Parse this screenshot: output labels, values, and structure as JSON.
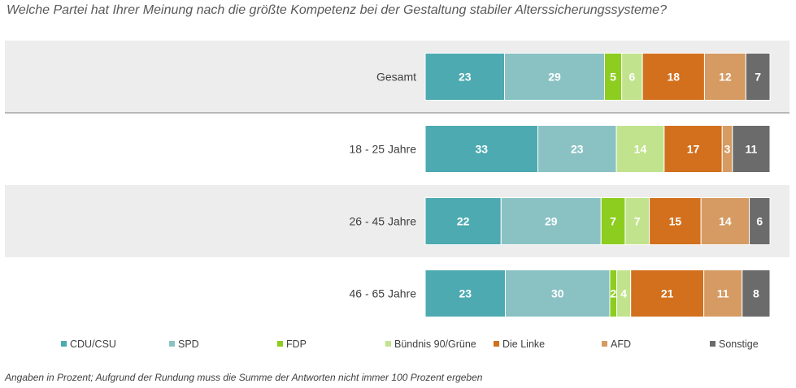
{
  "title": "Welche Partei hat Ihrer Meinung nach die größte Kompetenz bei der Gestaltung stabiler Alterssicherungssysteme?",
  "footnote": "Angaben in Prozent; Aufgrund der Rundung muss die Summe der Antworten nicht immer 100 Prozent ergeben",
  "chart_data": {
    "type": "bar",
    "orientation": "horizontal",
    "stacked": true,
    "categories": [
      "Gesamt",
      "18 - 25 Jahre",
      "26 - 45 Jahre",
      "46 - 65 Jahre"
    ],
    "series": [
      {
        "name": "CDU/CSU",
        "color": "#4daab1",
        "values": [
          23,
          33,
          22,
          23
        ]
      },
      {
        "name": "SPD",
        "color": "#8ac2c4",
        "values": [
          29,
          23,
          29,
          30
        ]
      },
      {
        "name": "FDP",
        "color": "#8ccd1f",
        "values": [
          5,
          0,
          7,
          2
        ]
      },
      {
        "name": "Bündnis 90/Grüne",
        "color": "#c2e38e",
        "values": [
          6,
          14,
          7,
          4
        ]
      },
      {
        "name": "Die Linke",
        "color": "#d2701d",
        "values": [
          18,
          17,
          15,
          21
        ]
      },
      {
        "name": "AFD",
        "color": "#d59b63",
        "values": [
          12,
          3,
          14,
          11
        ]
      },
      {
        "name": "Sonstige",
        "color": "#6b6b6b",
        "values": [
          7,
          11,
          6,
          8
        ]
      }
    ],
    "legend_position": "bottom",
    "data_labels": true,
    "band_colors": [
      "#ededed",
      "#ffffff",
      "#ededed",
      "#ffffff"
    ]
  }
}
